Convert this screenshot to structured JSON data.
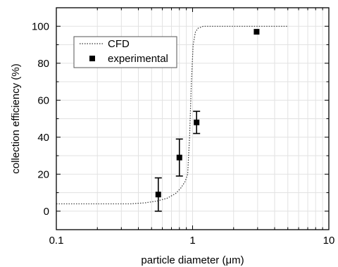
{
  "chart_data": {
    "type": "scatter",
    "xlabel": "particle diameter (μm)",
    "ylabel": "collection efficiency (%)",
    "xscale": "log",
    "xlim": [
      0.1,
      10
    ],
    "ylim": [
      -10,
      110
    ],
    "x_tick_labels": [
      "0.1",
      "1",
      "10"
    ],
    "y_ticks": [
      0,
      20,
      40,
      60,
      80,
      100
    ],
    "y_tick_labels": [
      "0",
      "20",
      "40",
      "60",
      "80",
      "100"
    ],
    "grid": true,
    "legend_placement": "top-left",
    "series": [
      {
        "name": "CFD",
        "style": "dotted-line",
        "color": "#333333",
        "x": [
          0.1,
          0.2,
          0.35,
          0.45,
          0.55,
          0.65,
          0.75,
          0.82,
          0.88,
          0.92,
          0.95,
          0.98,
          1.01,
          1.05,
          1.1,
          1.2,
          1.5,
          2,
          3,
          5
        ],
        "y": [
          4,
          4,
          4,
          4.5,
          5.5,
          7,
          9.5,
          12.5,
          16,
          20,
          40,
          70,
          90,
          97,
          99,
          100,
          100,
          100,
          100,
          100
        ]
      },
      {
        "name": "experimental",
        "style": "square-marker",
        "color": "#000000",
        "x": [
          0.56,
          0.8,
          1.07,
          2.95
        ],
        "y": [
          9,
          29,
          48,
          97
        ],
        "yerr": [
          9,
          10,
          6,
          0
        ]
      }
    ]
  }
}
